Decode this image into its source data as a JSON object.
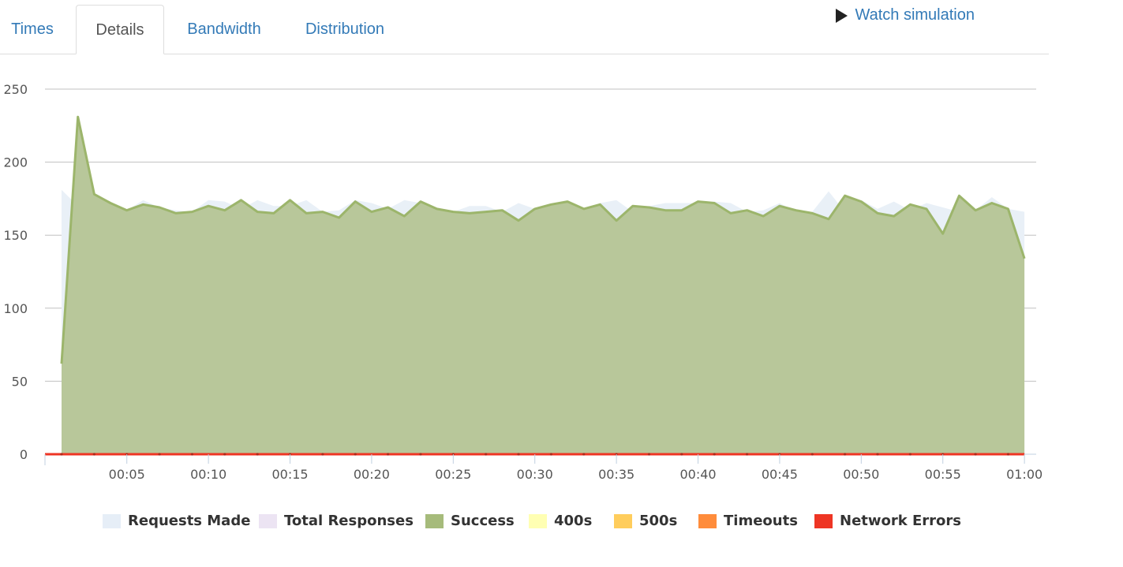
{
  "tabs": [
    {
      "label": "Times",
      "active": false
    },
    {
      "label": "Details",
      "active": true
    },
    {
      "label": "Bandwidth",
      "active": false
    },
    {
      "label": "Distribution",
      "active": false
    }
  ],
  "watch_simulation": {
    "label": "Watch simulation",
    "icon": "play-icon"
  },
  "chart_data": {
    "type": "area",
    "title": "",
    "xlabel": "",
    "ylabel": "",
    "ylim": [
      0,
      250
    ],
    "yticks": [
      0,
      50,
      100,
      150,
      200,
      250
    ],
    "x_tick_labels": [
      "00:05",
      "00:10",
      "00:15",
      "00:20",
      "00:25",
      "00:30",
      "00:35",
      "00:40",
      "00:45",
      "00:50",
      "00:55",
      "01:00"
    ],
    "x_start_seconds": 1,
    "x_step_seconds": 1,
    "grid": true,
    "legend_position": "bottom",
    "series": [
      {
        "name": "Requests Made",
        "color": "#e6eef7",
        "values": [
          181,
          170,
          178,
          172,
          167,
          174,
          169,
          167,
          166,
          174,
          173,
          168,
          174,
          170,
          170,
          174,
          166,
          167,
          174,
          172,
          168,
          174,
          172,
          168,
          166,
          170,
          170,
          166,
          172,
          168,
          170,
          173,
          168,
          172,
          174,
          166,
          170,
          172,
          172,
          172,
          173,
          172,
          166,
          167,
          172,
          166,
          166,
          180,
          166,
          174,
          168,
          173,
          167,
          172,
          169,
          166,
          167,
          176,
          168,
          166
        ]
      },
      {
        "name": "Total Responses",
        "color": "#ece4f3",
        "values": []
      },
      {
        "name": "Success",
        "color": "#a6bb7b",
        "values": [
          62,
          231,
          178,
          172,
          167,
          171,
          169,
          165,
          166,
          170,
          167,
          174,
          166,
          165,
          174,
          165,
          166,
          162,
          173,
          166,
          169,
          163,
          173,
          168,
          166,
          165,
          166,
          167,
          160,
          168,
          171,
          173,
          168,
          171,
          160,
          170,
          169,
          167,
          167,
          173,
          172,
          165,
          167,
          163,
          170,
          167,
          165,
          161,
          177,
          173,
          165,
          163,
          171,
          168,
          151,
          177,
          167,
          172,
          168,
          134
        ]
      },
      {
        "name": "400s",
        "color": "#ffffb3",
        "values": []
      },
      {
        "name": "500s",
        "color": "#ffcd5c",
        "values": []
      },
      {
        "name": "Timeouts",
        "color": "#ff8c3b",
        "values": []
      },
      {
        "name": "Network Errors",
        "color": "#ee3524",
        "values": [
          0,
          0,
          0,
          0,
          0,
          0,
          0,
          0,
          0,
          0,
          0,
          0,
          0,
          0,
          0,
          0,
          0,
          0,
          0,
          0,
          0,
          0,
          0,
          0,
          0,
          0,
          0,
          0,
          0,
          0,
          0,
          0,
          0,
          0,
          0,
          0,
          0,
          0,
          0,
          0,
          0,
          0,
          0,
          0,
          0,
          0,
          0,
          0,
          0,
          0,
          0,
          0,
          0,
          0,
          0,
          0,
          0,
          0,
          0,
          0
        ]
      }
    ]
  }
}
